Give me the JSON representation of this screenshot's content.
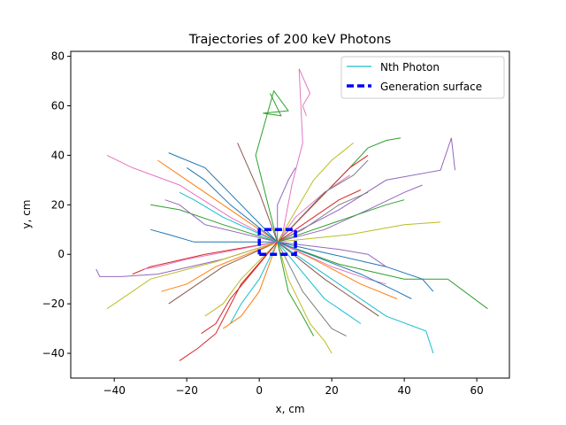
{
  "chart_data": {
    "type": "line",
    "title": "Trajectories of 200 keV Photons",
    "xlabel": "x, cm",
    "ylabel": "y, cm",
    "xlim": [
      -52,
      69
    ],
    "ylim": [
      -50,
      82
    ],
    "xticks": [
      -40,
      -20,
      0,
      20,
      40,
      60
    ],
    "yticks": [
      -40,
      -20,
      0,
      20,
      40,
      60,
      80
    ],
    "grid": false,
    "legend_position": "top-right",
    "legend": [
      {
        "label": "Nth Photon",
        "color": "#17becf",
        "style": "solid"
      },
      {
        "label": "Generation surface",
        "color": "#0000ff",
        "style": "dashed"
      }
    ],
    "color_cycle": [
      "#1f77b4",
      "#ff7f0e",
      "#2ca02c",
      "#d62728",
      "#9467bd",
      "#8c564b",
      "#e377c2",
      "#7f7f7f",
      "#bcbd22",
      "#17becf"
    ],
    "generation_surface": {
      "x": [
        0,
        10,
        10,
        0,
        0
      ],
      "y": [
        0,
        0,
        10,
        10,
        0
      ]
    },
    "trajectories": [
      {
        "color": "#2ca02c",
        "x": [
          5,
          -1,
          4,
          8,
          1,
          6,
          3
        ],
        "y": [
          5,
          40,
          66,
          58,
          57,
          56,
          65
        ]
      },
      {
        "color": "#e377c2",
        "x": [
          6,
          9,
          12,
          11,
          14,
          12,
          13
        ],
        "y": [
          5,
          28,
          45,
          75,
          65,
          60,
          56
        ]
      },
      {
        "color": "#9467bd",
        "x": [
          5,
          -10,
          -28,
          -38,
          -44,
          -45
        ],
        "y": [
          5,
          -2,
          -8,
          -9,
          -9,
          -6
        ]
      },
      {
        "color": "#2ca02c",
        "x": [
          5,
          22,
          40,
          52,
          63
        ],
        "y": [
          5,
          -4,
          -10,
          -10,
          -22
        ]
      },
      {
        "color": "#9467bd",
        "x": [
          5,
          22,
          35,
          50,
          53,
          54
        ],
        "y": [
          5,
          18,
          30,
          34,
          47,
          34
        ]
      },
      {
        "color": "#17becf",
        "x": [
          5,
          20,
          35,
          46,
          48
        ],
        "y": [
          5,
          -10,
          -25,
          -31,
          -40
        ]
      },
      {
        "color": "#bcbd22",
        "x": [
          5,
          -12,
          -30,
          -42
        ],
        "y": [
          5,
          -3,
          -10,
          -22
        ]
      },
      {
        "color": "#d62728",
        "x": [
          5,
          -5,
          -12,
          -17,
          -20,
          -22
        ],
        "y": [
          5,
          -12,
          -32,
          -38,
          -41,
          -43
        ]
      },
      {
        "color": "#2ca02c",
        "x": [
          5,
          15,
          25,
          30,
          35,
          39
        ],
        "y": [
          5,
          20,
          35,
          43,
          46,
          47
        ]
      },
      {
        "color": "#bcbd22",
        "x": [
          5,
          8,
          14,
          18,
          20
        ],
        "y": [
          5,
          -10,
          -28,
          -35,
          -40
        ]
      },
      {
        "color": "#e377c2",
        "x": [
          5,
          -8,
          -22,
          -35,
          -42
        ],
        "y": [
          5,
          15,
          28,
          35,
          40
        ]
      },
      {
        "color": "#9467bd",
        "x": [
          5,
          18,
          30,
          40,
          45
        ],
        "y": [
          5,
          10,
          18,
          25,
          28
        ]
      },
      {
        "color": "#ff7f0e",
        "x": [
          5,
          -5,
          -15,
          -25,
          -28
        ],
        "y": [
          5,
          15,
          25,
          35,
          38
        ]
      },
      {
        "color": "#1f77b4",
        "x": [
          5,
          20,
          35,
          45,
          48
        ],
        "y": [
          5,
          0,
          -5,
          -10,
          -15
        ]
      },
      {
        "color": "#8c564b",
        "x": [
          5,
          -10,
          -20,
          -25
        ],
        "y": [
          5,
          -5,
          -15,
          -20
        ]
      },
      {
        "color": "#d62728",
        "x": [
          5,
          15,
          25,
          30
        ],
        "y": [
          5,
          20,
          35,
          40
        ]
      },
      {
        "color": "#7f7f7f",
        "x": [
          5,
          12,
          20,
          24
        ],
        "y": [
          5,
          -15,
          -30,
          -33
        ]
      },
      {
        "color": "#1f77b4",
        "x": [
          5,
          -5,
          -15,
          -25
        ],
        "y": [
          5,
          20,
          35,
          41
        ]
      },
      {
        "color": "#ff7f0e",
        "x": [
          5,
          15,
          28,
          38
        ],
        "y": [
          5,
          -2,
          -12,
          -18
        ]
      },
      {
        "color": "#2ca02c",
        "x": [
          5,
          -10,
          -22,
          -30
        ],
        "y": [
          5,
          12,
          18,
          20
        ]
      },
      {
        "color": "#e377c2",
        "x": [
          5,
          10,
          18,
          25
        ],
        "y": [
          5,
          15,
          25,
          32
        ]
      },
      {
        "color": "#17becf",
        "x": [
          5,
          0,
          -5,
          -8
        ],
        "y": [
          5,
          -10,
          -20,
          -28
        ]
      },
      {
        "color": "#bcbd22",
        "x": [
          5,
          25,
          40,
          50
        ],
        "y": [
          5,
          8,
          12,
          13
        ]
      },
      {
        "color": "#d62728",
        "x": [
          5,
          -15,
          -30,
          -35
        ],
        "y": [
          5,
          0,
          -5,
          -8
        ]
      },
      {
        "color": "#9467bd",
        "x": [
          5,
          5,
          8,
          10
        ],
        "y": [
          5,
          20,
          30,
          35
        ]
      },
      {
        "color": "#8c564b",
        "x": [
          5,
          18,
          28,
          33
        ],
        "y": [
          5,
          -10,
          -20,
          -25
        ]
      },
      {
        "color": "#1f77b4",
        "x": [
          5,
          -8,
          -15,
          -20
        ],
        "y": [
          5,
          20,
          30,
          35
        ]
      },
      {
        "color": "#7f7f7f",
        "x": [
          5,
          12,
          22,
          30
        ],
        "y": [
          5,
          10,
          20,
          25
        ]
      },
      {
        "color": "#ff7f0e",
        "x": [
          5,
          -12,
          -20,
          -27
        ],
        "y": [
          5,
          -5,
          -12,
          -15
        ]
      },
      {
        "color": "#2ca02c",
        "x": [
          5,
          8,
          12,
          15
        ],
        "y": [
          5,
          -15,
          -25,
          -33
        ]
      },
      {
        "color": "#e377c2",
        "x": [
          5,
          20,
          30,
          35
        ],
        "y": [
          5,
          -5,
          -10,
          -12
        ]
      },
      {
        "color": "#17becf",
        "x": [
          5,
          -10,
          -18,
          -22
        ],
        "y": [
          5,
          15,
          22,
          25
        ]
      },
      {
        "color": "#d62728",
        "x": [
          5,
          15,
          22,
          28
        ],
        "y": [
          5,
          15,
          22,
          26
        ]
      },
      {
        "color": "#bcbd22",
        "x": [
          5,
          -5,
          -10,
          -15
        ],
        "y": [
          5,
          -10,
          -20,
          -25
        ]
      },
      {
        "color": "#9467bd",
        "x": [
          5,
          22,
          30,
          35
        ],
        "y": [
          5,
          2,
          0,
          -5
        ]
      },
      {
        "color": "#1f77b4",
        "x": [
          5,
          -18,
          -25,
          -30
        ],
        "y": [
          5,
          5,
          8,
          10
        ]
      },
      {
        "color": "#8c564b",
        "x": [
          5,
          0,
          -3,
          -6
        ],
        "y": [
          5,
          25,
          35,
          45
        ]
      },
      {
        "color": "#7f7f7f",
        "x": [
          5,
          18,
          26,
          30
        ],
        "y": [
          5,
          25,
          32,
          38
        ]
      },
      {
        "color": "#ff7f0e",
        "x": [
          5,
          0,
          -5,
          -10
        ],
        "y": [
          5,
          -15,
          -25,
          -30
        ]
      },
      {
        "color": "#2ca02c",
        "x": [
          5,
          25,
          35,
          40
        ],
        "y": [
          5,
          15,
          20,
          22
        ]
      },
      {
        "color": "#e377c2",
        "x": [
          5,
          -20,
          -28,
          -32
        ],
        "y": [
          5,
          -2,
          -5,
          -6
        ]
      },
      {
        "color": "#17becf",
        "x": [
          5,
          18,
          25,
          28
        ],
        "y": [
          5,
          -18,
          -25,
          -28
        ]
      },
      {
        "color": "#d62728",
        "x": [
          5,
          -8,
          -12,
          -16
        ],
        "y": [
          5,
          -18,
          -28,
          -32
        ]
      },
      {
        "color": "#bcbd22",
        "x": [
          5,
          15,
          20,
          26
        ],
        "y": [
          5,
          30,
          38,
          45
        ]
      },
      {
        "color": "#9467bd",
        "x": [
          5,
          -15,
          -22,
          -26
        ],
        "y": [
          5,
          12,
          20,
          22
        ]
      },
      {
        "color": "#1f77b4",
        "x": [
          5,
          28,
          38,
          42
        ],
        "y": [
          5,
          -8,
          -15,
          -18
        ]
      }
    ]
  },
  "legend_box": {
    "items": [
      {
        "label": "Nth Photon"
      },
      {
        "label": "Generation surface"
      }
    ]
  }
}
